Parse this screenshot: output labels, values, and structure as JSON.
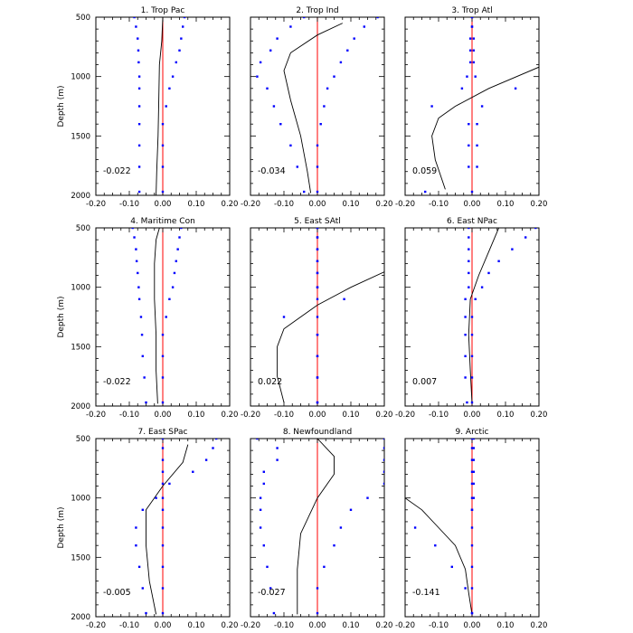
{
  "chart_data": {
    "type": "line",
    "ylabel": "Depth (m)",
    "x_range": [
      -0.2,
      0.2
    ],
    "y_range": [
      500,
      2000
    ],
    "y_reversed": true,
    "x_ticks": [
      "-0.20",
      "-0.10",
      "0.00",
      "0.10",
      "0.20"
    ],
    "y_ticks": [
      "500",
      "1000",
      "1500",
      "2000"
    ],
    "grid": false,
    "colors": {
      "line": "#000000",
      "dots": "#0000ff",
      "zero_line": "#ff0000"
    },
    "depths": [
      500,
      580,
      680,
      780,
      880,
      1000,
      1100,
      1250,
      1400,
      1580,
      1760,
      1970
    ],
    "panels": [
      {
        "title": "1. Trop Pac",
        "corr": "-0.022",
        "line": [
          [
            0.0,
            500
          ],
          [
            -0.003,
            700
          ],
          [
            -0.01,
            900
          ],
          [
            -0.012,
            1200
          ],
          [
            -0.014,
            1500
          ],
          [
            -0.018,
            1800
          ],
          [
            -0.02,
            2000
          ]
        ],
        "lower": [
          -0.085,
          -0.08,
          -0.075,
          -0.073,
          -0.072,
          -0.07,
          -0.07,
          -0.07,
          -0.07,
          -0.07,
          -0.07,
          -0.07
        ],
        "upper": [
          0.065,
          0.06,
          0.055,
          0.05,
          0.04,
          0.03,
          0.02,
          0.01,
          0.0,
          0.0,
          0.0,
          0.0
        ]
      },
      {
        "title": "2. Trop Ind",
        "corr": "-0.034",
        "line": [
          [
            0.075,
            550
          ],
          [
            0.0,
            650
          ],
          [
            -0.08,
            800
          ],
          [
            -0.1,
            950
          ],
          [
            -0.08,
            1200
          ],
          [
            -0.05,
            1500
          ],
          [
            -0.03,
            1800
          ],
          [
            -0.02,
            1980
          ]
        ],
        "lower": [
          -0.04,
          -0.08,
          -0.12,
          -0.14,
          -0.17,
          -0.18,
          -0.15,
          -0.13,
          -0.11,
          -0.08,
          -0.06,
          -0.04
        ],
        "upper": [
          0.18,
          0.14,
          0.11,
          0.09,
          0.07,
          0.05,
          0.03,
          0.02,
          0.01,
          0.0,
          0.0,
          0.0
        ]
      },
      {
        "title": "3. Trop Atl",
        "corr": "0.059",
        "line": [
          [
            0.2,
            920
          ],
          [
            0.05,
            1100
          ],
          [
            -0.05,
            1250
          ],
          [
            -0.1,
            1350
          ],
          [
            -0.12,
            1500
          ],
          [
            -0.11,
            1700
          ],
          [
            -0.08,
            1950
          ]
        ],
        "lower": [
          0.0,
          0.0,
          -0.005,
          -0.005,
          -0.005,
          -0.015,
          -0.03,
          -0.12,
          -0.01,
          -0.01,
          -0.01,
          -0.14
        ],
        "upper": [
          0.0,
          0.0,
          0.005,
          0.005,
          0.005,
          0.01,
          0.13,
          0.03,
          0.015,
          0.015,
          0.015,
          0.0
        ]
      },
      {
        "title": "4. Maritime Con",
        "corr": "-0.022",
        "line": [
          [
            -0.01,
            500
          ],
          [
            -0.02,
            600
          ],
          [
            -0.025,
            800
          ],
          [
            -0.025,
            1100
          ],
          [
            -0.02,
            1400
          ],
          [
            -0.02,
            1700
          ],
          [
            -0.015,
            1980
          ]
        ],
        "lower": [
          -0.09,
          -0.085,
          -0.08,
          -0.078,
          -0.075,
          -0.072,
          -0.07,
          -0.065,
          -0.062,
          -0.06,
          -0.055,
          -0.05
        ],
        "upper": [
          0.055,
          0.05,
          0.045,
          0.04,
          0.035,
          0.03,
          0.02,
          0.01,
          0.0,
          0.0,
          0.0,
          0.0
        ]
      },
      {
        "title": "5. East SAtl",
        "corr": "0.022",
        "line": [
          [
            0.2,
            870
          ],
          [
            0.1,
            1000
          ],
          [
            0.0,
            1150
          ],
          [
            -0.05,
            1250
          ],
          [
            -0.1,
            1350
          ],
          [
            -0.12,
            1500
          ],
          [
            -0.12,
            1750
          ],
          [
            -0.1,
            1970
          ]
        ],
        "lower": [
          0.0,
          0.0,
          0.0,
          0.0,
          0.0,
          0.0,
          0.0,
          -0.1,
          0.0,
          0.0,
          0.0,
          0.0
        ],
        "upper": [
          0.0,
          0.0,
          0.0,
          0.0,
          0.0,
          0.0,
          0.08,
          0.0,
          0.0,
          0.0,
          0.0,
          0.0
        ]
      },
      {
        "title": "6. East NPac",
        "corr": "0.007",
        "line": [
          [
            0.08,
            500
          ],
          [
            0.05,
            700
          ],
          [
            0.02,
            900
          ],
          [
            -0.005,
            1100
          ],
          [
            -0.01,
            1400
          ],
          [
            -0.005,
            1700
          ],
          [
            0.0,
            1980
          ]
        ],
        "lower": [
          -0.01,
          -0.01,
          -0.01,
          -0.01,
          -0.01,
          -0.01,
          -0.02,
          -0.02,
          -0.02,
          -0.02,
          -0.02,
          -0.015
        ],
        "upper": [
          0.19,
          0.16,
          0.12,
          0.08,
          0.05,
          0.03,
          0.01,
          0.0,
          0.0,
          0.0,
          0.0,
          0.0
        ]
      },
      {
        "title": "7. East SPac",
        "corr": "-0.005",
        "line": [
          [
            0.075,
            550
          ],
          [
            0.06,
            700
          ],
          [
            0.0,
            900
          ],
          [
            -0.05,
            1100
          ],
          [
            -0.05,
            1400
          ],
          [
            -0.04,
            1700
          ],
          [
            -0.02,
            1980
          ]
        ],
        "lower": [
          0.0,
          0.0,
          0.0,
          0.0,
          0.0,
          -0.02,
          -0.06,
          -0.08,
          -0.08,
          -0.07,
          -0.06,
          -0.05
        ],
        "upper": [
          0.16,
          0.15,
          0.13,
          0.09,
          0.02,
          0.0,
          0.0,
          0.0,
          0.0,
          0.0,
          0.0,
          0.0
        ]
      },
      {
        "title": "8. Newfoundland",
        "corr": "-0.027",
        "line": [
          [
            0.0,
            500
          ],
          [
            0.05,
            650
          ],
          [
            0.05,
            800
          ],
          [
            0.0,
            1000
          ],
          [
            -0.05,
            1300
          ],
          [
            -0.06,
            1600
          ],
          [
            -0.06,
            1980
          ]
        ],
        "lower": [
          -0.18,
          -0.12,
          -0.12,
          -0.16,
          -0.16,
          -0.17,
          -0.17,
          -0.17,
          -0.16,
          -0.15,
          -0.14,
          -0.13
        ],
        "upper": [
          0.2,
          0.2,
          0.2,
          0.2,
          0.2,
          0.15,
          0.1,
          0.07,
          0.05,
          0.02,
          0.0,
          0.0
        ]
      },
      {
        "title": "9. Arctic",
        "corr": "-0.141",
        "line": [
          [
            -0.2,
            1000
          ],
          [
            -0.15,
            1100
          ],
          [
            -0.1,
            1250
          ],
          [
            -0.05,
            1400
          ],
          [
            -0.02,
            1600
          ],
          [
            -0.01,
            1800
          ],
          [
            0.0,
            1980
          ]
        ],
        "lower": [
          0.0,
          0.0,
          0.0,
          0.0,
          0.0,
          0.0,
          0.0,
          -0.17,
          -0.11,
          -0.06,
          -0.02,
          0.0
        ],
        "upper": [
          0.005,
          0.005,
          0.005,
          0.005,
          0.005,
          0.005,
          0.0,
          0.0,
          0.0,
          0.0,
          0.0,
          0.0
        ]
      }
    ]
  }
}
